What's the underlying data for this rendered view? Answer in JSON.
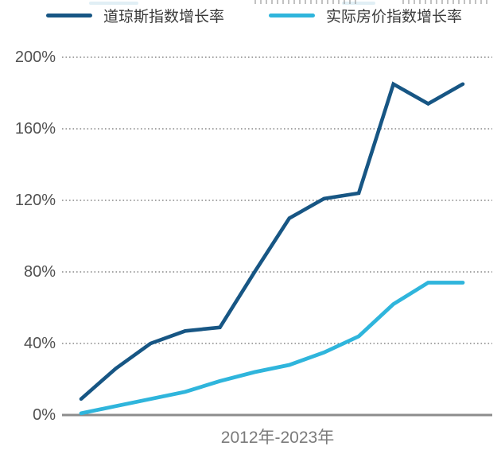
{
  "colors": {
    "background": "#ffffff",
    "axis_line": "#8c8c8c",
    "gridline": "#5a5a5a",
    "y_label_text": "#515151",
    "x_label_text": "#7b7b7b",
    "legend_text": "#3a3a3a"
  },
  "chart_data": {
    "type": "line",
    "title": "",
    "xlabel": "2012年-2023年",
    "ylabel": "",
    "x": [
      2012,
      2013,
      2014,
      2015,
      2016,
      2017,
      2018,
      2019,
      2020,
      2021,
      2022,
      2023
    ],
    "x_tick_labels_shown": false,
    "ylim": [
      0,
      200
    ],
    "y_unit": "%",
    "grid": "horizontal dotted",
    "legend_position": "top",
    "y_ticks": [
      {
        "label": "200%",
        "value": 200
      },
      {
        "label": "160%",
        "value": 160
      },
      {
        "label": "120%",
        "value": 120
      },
      {
        "label": "80%",
        "value": 80
      },
      {
        "label": "40%",
        "value": 40
      },
      {
        "label": "0%",
        "value": 0
      }
    ],
    "series": [
      {
        "name": "道琼斯指数增长率",
        "color": "#175684",
        "values": [
          9,
          26,
          40,
          47,
          49,
          80,
          110,
          121,
          124,
          185,
          174,
          185
        ]
      },
      {
        "name": "实际房价指数增长率",
        "color": "#2fb5dc",
        "values": [
          1,
          5,
          9,
          13,
          19,
          24,
          28,
          35,
          44,
          62,
          74,
          74
        ]
      }
    ]
  }
}
